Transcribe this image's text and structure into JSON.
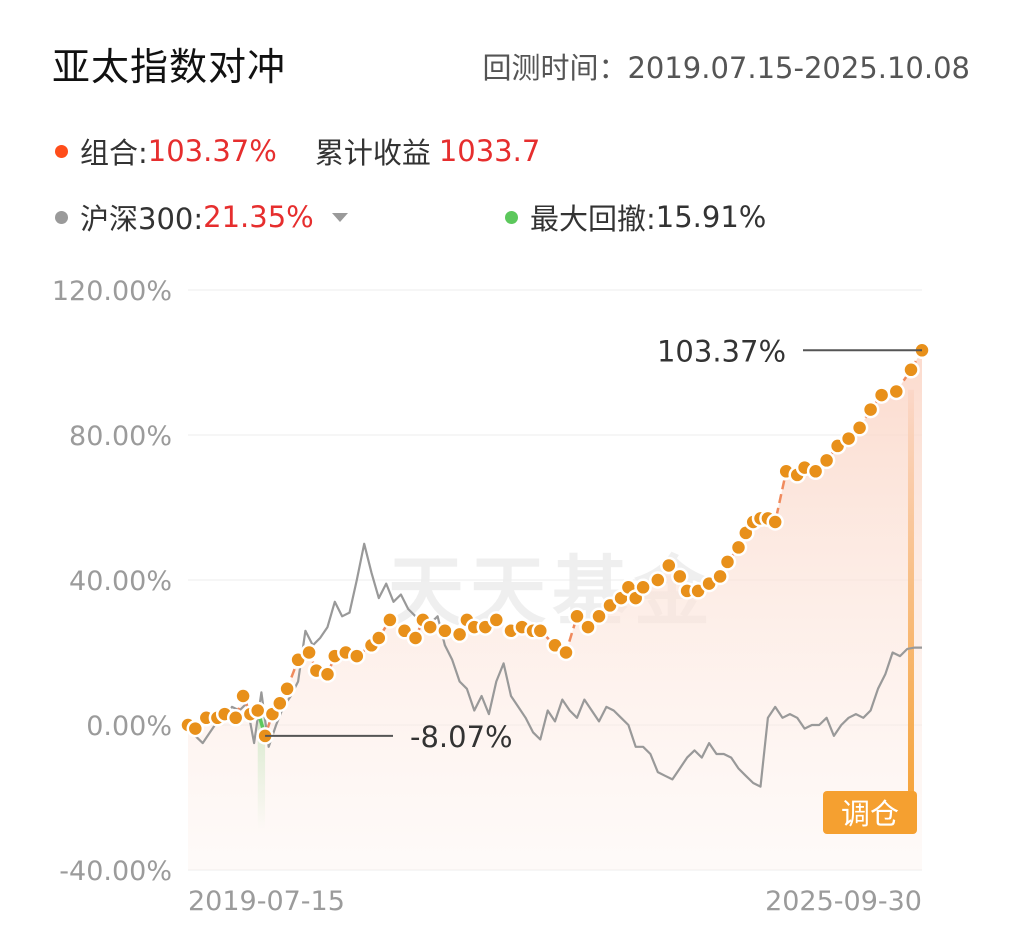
{
  "header": {
    "title": "亚太指数对冲",
    "period": "回测时间：2019.07.15-2025.10.08"
  },
  "legend": {
    "portfolio_label": "组合:",
    "portfolio_value": "103.37%",
    "cumulative_label": "累计收益",
    "cumulative_value": "1033.7",
    "benchmark_label": "沪深300:",
    "benchmark_value": "21.35%",
    "maxdd_label": "最大回撤:",
    "maxdd_value": "15.91%"
  },
  "watermark": "天天基金",
  "colors": {
    "portfolio": "#ff4d1a",
    "portfolio_line": "#f08a5d",
    "marker": "#e8901a",
    "benchmark": "#999999",
    "drawdown": "#5cc85c",
    "rebalance": "#f5a030",
    "accent_red": "#e62e2e"
  },
  "chart_data": {
    "type": "line",
    "ylim": [
      -40,
      120
    ],
    "yticks": [
      "120.00%",
      "80.00%",
      "40.00%",
      "0.00%",
      "-40.00%"
    ],
    "x_start_label": "2019-07-15",
    "x_end_label": "2025-09-30",
    "annotations": {
      "max_label": "103.37%",
      "min_label": "-8.07%",
      "rebalance_label": "调仓"
    },
    "series": [
      {
        "key": "portfolio",
        "t": [
          0,
          0.01,
          0.025,
          0.04,
          0.05,
          0.065,
          0.075,
          0.085,
          0.095,
          0.105,
          0.115,
          0.125,
          0.135,
          0.15,
          0.165,
          0.175,
          0.19,
          0.2,
          0.215,
          0.23,
          0.25,
          0.26,
          0.275,
          0.295,
          0.31,
          0.32,
          0.33,
          0.35,
          0.37,
          0.38,
          0.39,
          0.405,
          0.42,
          0.44,
          0.455,
          0.47,
          0.48,
          0.5,
          0.515,
          0.53,
          0.545,
          0.56,
          0.575,
          0.59,
          0.6,
          0.61,
          0.62,
          0.64,
          0.655,
          0.67,
          0.68,
          0.695,
          0.71,
          0.725,
          0.735,
          0.75,
          0.76,
          0.77,
          0.78,
          0.79,
          0.8,
          0.815,
          0.83,
          0.84,
          0.855,
          0.87,
          0.885,
          0.9,
          0.915,
          0.93,
          0.945,
          0.965,
          0.985,
          1.0
        ],
        "values": [
          0,
          -1,
          2,
          2,
          3,
          2,
          8,
          3,
          4,
          -3,
          3,
          6,
          10,
          18,
          20,
          15,
          14,
          19,
          20,
          19,
          22,
          24,
          29,
          26,
          24,
          29,
          27,
          26,
          25,
          29,
          27,
          27,
          29,
          26,
          27,
          26,
          26,
          22,
          20,
          30,
          27,
          30,
          33,
          35,
          38,
          35,
          38,
          40,
          44,
          41,
          37,
          37,
          39,
          41,
          45,
          49,
          53,
          56,
          57,
          57,
          56,
          70,
          69,
          71,
          70,
          73,
          77,
          79,
          82,
          87,
          91,
          92,
          98,
          103.37
        ]
      },
      {
        "key": "benchmark",
        "t": [
          0,
          0.01,
          0.02,
          0.03,
          0.04,
          0.05,
          0.06,
          0.07,
          0.08,
          0.09,
          0.1,
          0.11,
          0.12,
          0.13,
          0.14,
          0.15,
          0.16,
          0.17,
          0.18,
          0.19,
          0.2,
          0.21,
          0.22,
          0.23,
          0.24,
          0.25,
          0.26,
          0.27,
          0.28,
          0.29,
          0.3,
          0.31,
          0.32,
          0.33,
          0.34,
          0.35,
          0.36,
          0.37,
          0.38,
          0.39,
          0.4,
          0.41,
          0.42,
          0.43,
          0.44,
          0.45,
          0.46,
          0.47,
          0.48,
          0.49,
          0.5,
          0.51,
          0.52,
          0.53,
          0.54,
          0.55,
          0.56,
          0.57,
          0.58,
          0.59,
          0.6,
          0.61,
          0.62,
          0.63,
          0.64,
          0.65,
          0.66,
          0.67,
          0.68,
          0.69,
          0.7,
          0.71,
          0.72,
          0.73,
          0.74,
          0.75,
          0.76,
          0.77,
          0.78,
          0.79,
          0.8,
          0.81,
          0.82,
          0.83,
          0.84,
          0.85,
          0.86,
          0.87,
          0.88,
          0.89,
          0.9,
          0.91,
          0.92,
          0.93,
          0.94,
          0.95,
          0.96,
          0.97,
          0.98,
          0.99,
          1.0
        ],
        "values": [
          0,
          -3,
          -5,
          -2,
          1,
          2,
          5,
          4,
          6,
          -5,
          9,
          -6,
          0,
          5,
          8,
          12,
          26,
          22,
          24,
          27,
          34,
          30,
          31,
          40,
          50,
          42,
          35,
          39,
          34,
          36,
          32,
          30,
          27,
          28,
          30,
          22,
          18,
          12,
          10,
          4,
          8,
          3,
          12,
          17,
          8,
          5,
          2,
          -2,
          -4,
          4,
          1,
          7,
          4,
          2,
          7,
          4,
          1,
          5,
          4,
          2,
          0,
          -6,
          -6,
          -8,
          -13,
          -14,
          -15,
          -12,
          -9,
          -7,
          -9,
          -5,
          -8,
          -8,
          -9,
          -12,
          -14,
          -16,
          -17,
          2,
          5,
          2,
          3,
          2,
          -1,
          0,
          0,
          2,
          -3,
          0,
          2,
          3,
          2,
          4,
          10,
          14,
          20,
          19,
          21,
          21.35,
          21.35
        ]
      }
    ]
  }
}
